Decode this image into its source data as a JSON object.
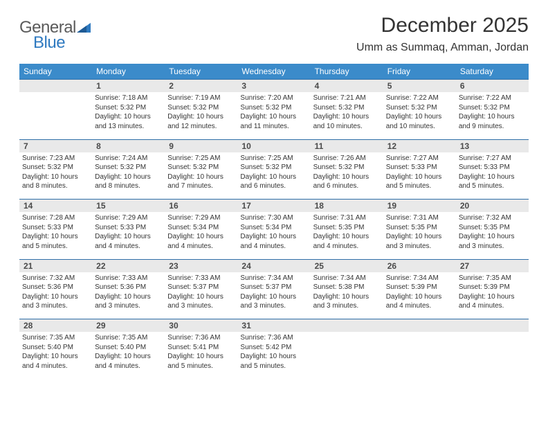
{
  "brand": {
    "part1": "General",
    "part2": "Blue"
  },
  "title": "December 2025",
  "location": "Umm as Summaq, Amman, Jordan",
  "colors": {
    "header_bg": "#3b8bca",
    "header_text": "#ffffff",
    "daynum_bg": "#e9e9e9",
    "daynum_text": "#4a4a4a",
    "border": "#2f6fa8",
    "brand_gray": "#5a5a5a",
    "brand_blue": "#2f7ac0",
    "body_bg": "#ffffff"
  },
  "typography": {
    "title_fontsize": 30,
    "location_fontsize": 16,
    "header_fontsize": 12,
    "daynum_fontsize": 12,
    "body_fontsize": 10,
    "font_family": "Arial"
  },
  "weekdays": [
    "Sunday",
    "Monday",
    "Tuesday",
    "Wednesday",
    "Thursday",
    "Friday",
    "Saturday"
  ],
  "weeks": [
    [
      null,
      {
        "n": "1",
        "sr": "Sunrise: 7:18 AM",
        "ss": "Sunset: 5:32 PM",
        "dl": "Daylight: 10 hours and 13 minutes."
      },
      {
        "n": "2",
        "sr": "Sunrise: 7:19 AM",
        "ss": "Sunset: 5:32 PM",
        "dl": "Daylight: 10 hours and 12 minutes."
      },
      {
        "n": "3",
        "sr": "Sunrise: 7:20 AM",
        "ss": "Sunset: 5:32 PM",
        "dl": "Daylight: 10 hours and 11 minutes."
      },
      {
        "n": "4",
        "sr": "Sunrise: 7:21 AM",
        "ss": "Sunset: 5:32 PM",
        "dl": "Daylight: 10 hours and 10 minutes."
      },
      {
        "n": "5",
        "sr": "Sunrise: 7:22 AM",
        "ss": "Sunset: 5:32 PM",
        "dl": "Daylight: 10 hours and 10 minutes."
      },
      {
        "n": "6",
        "sr": "Sunrise: 7:22 AM",
        "ss": "Sunset: 5:32 PM",
        "dl": "Daylight: 10 hours and 9 minutes."
      }
    ],
    [
      {
        "n": "7",
        "sr": "Sunrise: 7:23 AM",
        "ss": "Sunset: 5:32 PM",
        "dl": "Daylight: 10 hours and 8 minutes."
      },
      {
        "n": "8",
        "sr": "Sunrise: 7:24 AM",
        "ss": "Sunset: 5:32 PM",
        "dl": "Daylight: 10 hours and 8 minutes."
      },
      {
        "n": "9",
        "sr": "Sunrise: 7:25 AM",
        "ss": "Sunset: 5:32 PM",
        "dl": "Daylight: 10 hours and 7 minutes."
      },
      {
        "n": "10",
        "sr": "Sunrise: 7:25 AM",
        "ss": "Sunset: 5:32 PM",
        "dl": "Daylight: 10 hours and 6 minutes."
      },
      {
        "n": "11",
        "sr": "Sunrise: 7:26 AM",
        "ss": "Sunset: 5:32 PM",
        "dl": "Daylight: 10 hours and 6 minutes."
      },
      {
        "n": "12",
        "sr": "Sunrise: 7:27 AM",
        "ss": "Sunset: 5:33 PM",
        "dl": "Daylight: 10 hours and 5 minutes."
      },
      {
        "n": "13",
        "sr": "Sunrise: 7:27 AM",
        "ss": "Sunset: 5:33 PM",
        "dl": "Daylight: 10 hours and 5 minutes."
      }
    ],
    [
      {
        "n": "14",
        "sr": "Sunrise: 7:28 AM",
        "ss": "Sunset: 5:33 PM",
        "dl": "Daylight: 10 hours and 5 minutes."
      },
      {
        "n": "15",
        "sr": "Sunrise: 7:29 AM",
        "ss": "Sunset: 5:33 PM",
        "dl": "Daylight: 10 hours and 4 minutes."
      },
      {
        "n": "16",
        "sr": "Sunrise: 7:29 AM",
        "ss": "Sunset: 5:34 PM",
        "dl": "Daylight: 10 hours and 4 minutes."
      },
      {
        "n": "17",
        "sr": "Sunrise: 7:30 AM",
        "ss": "Sunset: 5:34 PM",
        "dl": "Daylight: 10 hours and 4 minutes."
      },
      {
        "n": "18",
        "sr": "Sunrise: 7:31 AM",
        "ss": "Sunset: 5:35 PM",
        "dl": "Daylight: 10 hours and 4 minutes."
      },
      {
        "n": "19",
        "sr": "Sunrise: 7:31 AM",
        "ss": "Sunset: 5:35 PM",
        "dl": "Daylight: 10 hours and 3 minutes."
      },
      {
        "n": "20",
        "sr": "Sunrise: 7:32 AM",
        "ss": "Sunset: 5:35 PM",
        "dl": "Daylight: 10 hours and 3 minutes."
      }
    ],
    [
      {
        "n": "21",
        "sr": "Sunrise: 7:32 AM",
        "ss": "Sunset: 5:36 PM",
        "dl": "Daylight: 10 hours and 3 minutes."
      },
      {
        "n": "22",
        "sr": "Sunrise: 7:33 AM",
        "ss": "Sunset: 5:36 PM",
        "dl": "Daylight: 10 hours and 3 minutes."
      },
      {
        "n": "23",
        "sr": "Sunrise: 7:33 AM",
        "ss": "Sunset: 5:37 PM",
        "dl": "Daylight: 10 hours and 3 minutes."
      },
      {
        "n": "24",
        "sr": "Sunrise: 7:34 AM",
        "ss": "Sunset: 5:37 PM",
        "dl": "Daylight: 10 hours and 3 minutes."
      },
      {
        "n": "25",
        "sr": "Sunrise: 7:34 AM",
        "ss": "Sunset: 5:38 PM",
        "dl": "Daylight: 10 hours and 3 minutes."
      },
      {
        "n": "26",
        "sr": "Sunrise: 7:34 AM",
        "ss": "Sunset: 5:39 PM",
        "dl": "Daylight: 10 hours and 4 minutes."
      },
      {
        "n": "27",
        "sr": "Sunrise: 7:35 AM",
        "ss": "Sunset: 5:39 PM",
        "dl": "Daylight: 10 hours and 4 minutes."
      }
    ],
    [
      {
        "n": "28",
        "sr": "Sunrise: 7:35 AM",
        "ss": "Sunset: 5:40 PM",
        "dl": "Daylight: 10 hours and 4 minutes."
      },
      {
        "n": "29",
        "sr": "Sunrise: 7:35 AM",
        "ss": "Sunset: 5:40 PM",
        "dl": "Daylight: 10 hours and 4 minutes."
      },
      {
        "n": "30",
        "sr": "Sunrise: 7:36 AM",
        "ss": "Sunset: 5:41 PM",
        "dl": "Daylight: 10 hours and 5 minutes."
      },
      {
        "n": "31",
        "sr": "Sunrise: 7:36 AM",
        "ss": "Sunset: 5:42 PM",
        "dl": "Daylight: 10 hours and 5 minutes."
      },
      null,
      null,
      null
    ]
  ]
}
